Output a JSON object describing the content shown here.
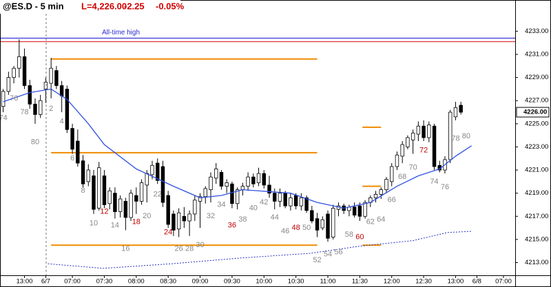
{
  "chart_data": {
    "type": "candlestick",
    "title": "@ES.D - 5 min",
    "quote": [
      {
        "text": "L=4,226.00",
        "color": "#d00000"
      },
      {
        "text": "-2.25",
        "color": "#d00000"
      },
      {
        "text": "-0.05%",
        "color": "#d00000"
      }
    ],
    "xlim": [
      -0.6,
      96.2
    ],
    "ylim": [
      4211.9,
      4235.7
    ],
    "xticks": [
      {
        "value": 4,
        "label": "13:00"
      },
      {
        "value": 8,
        "label": "6/7"
      },
      {
        "value": 13,
        "label": "07:00"
      },
      {
        "value": 19,
        "label": "07:30"
      },
      {
        "value": 25,
        "label": "08:00"
      },
      {
        "value": 31,
        "label": "08:30"
      },
      {
        "value": 37,
        "label": "09:00"
      },
      {
        "value": 43,
        "label": "09:30"
      },
      {
        "value": 49,
        "label": "10:00"
      },
      {
        "value": 55,
        "label": "10:30"
      },
      {
        "value": 61,
        "label": "11:00"
      },
      {
        "value": 67,
        "label": "11:30"
      },
      {
        "value": 73,
        "label": "12:00"
      },
      {
        "value": 79,
        "label": "12:30"
      },
      {
        "value": 85,
        "label": "13:00"
      },
      {
        "value": 89,
        "label": "6/8"
      },
      {
        "value": 94,
        "label": "07:00"
      }
    ],
    "yticks": [
      {
        "value": 4213,
        "label": "4213.00"
      },
      {
        "value": 4215,
        "label": "4215.00"
      },
      {
        "value": 4217,
        "label": "4217.00"
      },
      {
        "value": 4219,
        "label": "4219.00"
      },
      {
        "value": 4221,
        "label": "4221.00"
      },
      {
        "value": 4223,
        "label": "4223.00"
      },
      {
        "value": 4225,
        "label": "4225.00"
      },
      {
        "value": 4227,
        "label": "4227.00"
      },
      {
        "value": 4229,
        "label": "4229.00"
      },
      {
        "value": 4231,
        "label": "4231.00"
      },
      {
        "value": 4233,
        "label": "4233.00"
      }
    ],
    "last_price": {
      "value": 4226,
      "label": "4226.00"
    },
    "up_color": "#ffffff",
    "down_color": "#000000",
    "candles": {
      "open": [
        4226.5,
        4227.8,
        4229,
        4229.8,
        4230.8,
        4228.3,
        4226.7,
        4225.8,
        4228,
        4228.5,
        4229.6,
        4228.3,
        4228,
        4224.6,
        4223.5,
        4221.8,
        4220,
        4220.5,
        4217.7,
        4220.5,
        4218.1,
        4219,
        4217.4,
        4218.3,
        4216.9,
        4218.8,
        4218.3,
        4219.7,
        4220.6,
        4221.6,
        4221.3,
        4218.8,
        4217.2,
        4215.9,
        4217,
        4216.6,
        4217.2,
        4218.3,
        4218.7,
        4219.3,
        4220.3,
        4220.8,
        4219.6,
        4219.8,
        4218.1,
        4219.3,
        4219.6,
        4220.4,
        4219.9,
        4220.7,
        4219.7,
        4219,
        4218.3,
        4219,
        4217.9,
        4218.8,
        4217.9,
        4218.6,
        4217.5,
        4216.8,
        4216,
        4217.2,
        4215.2,
        4217.6,
        4217.9,
        4217.5,
        4217.8,
        4217.9,
        4217,
        4218.2,
        4218.6,
        4218.9,
        4219.3,
        4220,
        4221.3,
        4222.2,
        4223,
        4223.6,
        4224.1,
        4224.8,
        4223.8,
        4224.8,
        4221.4,
        4221,
        4221.9,
        4225.6,
        4226.6
      ],
      "high": [
        4228,
        4229.5,
        4230,
        4232.3,
        4231.5,
        4228.8,
        4227.2,
        4227.5,
        4229,
        4230.7,
        4230,
        4228.7,
        4228.3,
        4225,
        4224.5,
        4222.3,
        4221.5,
        4221,
        4221.7,
        4221,
        4219.5,
        4219.5,
        4218.8,
        4218.6,
        4219.3,
        4219.5,
        4220.2,
        4221,
        4221.8,
        4222,
        4221.8,
        4219.2,
        4217.5,
        4217.7,
        4217.8,
        4217.5,
        4218.8,
        4219,
        4219.6,
        4220.8,
        4221.6,
        4221,
        4220.2,
        4220,
        4219.5,
        4219.9,
        4220.8,
        4220.7,
        4221.2,
        4221,
        4220.5,
        4219.4,
        4219.4,
        4219.2,
        4219,
        4219,
        4219,
        4218.8,
        4217.9,
        4217.3,
        4217,
        4217.5,
        4218,
        4218.2,
        4218.1,
        4218,
        4218.2,
        4218.2,
        4218.4,
        4218.8,
        4219.2,
        4219.5,
        4220.4,
        4221.6,
        4222.6,
        4223.5,
        4224,
        4224.5,
        4225.2,
        4225.3,
        4225.2,
        4225,
        4221.8,
        4222.2,
        4226.2,
        4226.9,
        4226.9
      ],
      "low": [
        4226,
        4227.5,
        4228.5,
        4229,
        4228,
        4226.3,
        4225,
        4225.5,
        4226.8,
        4227.2,
        4228,
        4226,
        4224.2,
        4222.4,
        4221.3,
        4219.5,
        4219.6,
        4217.2,
        4217.5,
        4217.7,
        4217.6,
        4216.8,
        4216.9,
        4215.8,
        4216.6,
        4217.2,
        4218,
        4218.2,
        4220.2,
        4219.8,
        4217.8,
        4216,
        4215.3,
        4215.2,
        4216,
        4215.3,
        4216.6,
        4216,
        4218.1,
        4218.2,
        4219.8,
        4219.3,
        4219,
        4217.7,
        4217.6,
        4218.8,
        4219.2,
        4219.5,
        4219.6,
        4219.4,
        4218.6,
        4217.6,
        4217.8,
        4217.7,
        4217.5,
        4217.6,
        4217.5,
        4217.3,
        4216.4,
        4215.2,
        4215.8,
        4214.8,
        4215,
        4217,
        4217.2,
        4217,
        4216.9,
        4216.6,
        4216.8,
        4217.8,
        4218.2,
        4218.5,
        4219,
        4219.6,
        4221,
        4221.6,
        4222.8,
        4222.4,
        4223.5,
        4223.5,
        4223.4,
        4221,
        4220.8,
        4220.7,
        4221.6,
        4225.3,
        4225.8
      ],
      "close": [
        4227.8,
        4229,
        4229.8,
        4230.8,
        4228.3,
        4226.7,
        4225.8,
        4227,
        4228.6,
        4229.8,
        4228.3,
        4227.4,
        4224.5,
        4222.8,
        4221.6,
        4219.8,
        4221,
        4217.6,
        4221.2,
        4218,
        4219.2,
        4217.4,
        4218.5,
        4216.9,
        4219,
        4218.3,
        4219.9,
        4220.7,
        4221.4,
        4220.1,
        4218.2,
        4216.3,
        4215.8,
        4217.3,
        4216.6,
        4217.2,
        4218.4,
        4218.7,
        4219.4,
        4220.4,
        4221.1,
        4219.6,
        4219.9,
        4218.1,
        4219.3,
        4219.6,
        4220.4,
        4219.8,
        4220.7,
        4219.7,
        4219,
        4218.3,
        4219,
        4217.9,
        4218.6,
        4217.9,
        4218.6,
        4217.5,
        4216.6,
        4215.8,
        4216.7,
        4215.1,
        4217.7,
        4217.9,
        4217.5,
        4217.8,
        4217.1,
        4217,
        4218.2,
        4218.6,
        4218.9,
        4219.3,
        4220.2,
        4221.3,
        4222.3,
        4223.2,
        4223.8,
        4224.2,
        4224.8,
        4223.8,
        4224.9,
        4221.3,
        4221,
        4221.9,
        4226,
        4226.4,
        4226
      ]
    },
    "ema": {
      "color": "#3050e0",
      "x": [
        0,
        5,
        9,
        12,
        16,
        19,
        25,
        32,
        37,
        41,
        45,
        54,
        59,
        64,
        69,
        74,
        78,
        82,
        85,
        88
      ],
      "values": [
        4226.9,
        4227.7,
        4228,
        4227.1,
        4225,
        4223.2,
        4221.1,
        4219.6,
        4218.6,
        4218.8,
        4219.3,
        4219,
        4218.2,
        4217.7,
        4218.2,
        4219.6,
        4220.5,
        4221.1,
        4222.2,
        4223.1
      ]
    },
    "dotted": {
      "color": "#2030c0",
      "x": [
        8.4,
        18.8,
        31.7,
        44.7,
        57.6,
        66.7,
        77,
        83.5,
        88
      ],
      "values": [
        4212.9,
        4212.5,
        4212.9,
        4213.4,
        4213.8,
        4214.4,
        4214.9,
        4215.6,
        4215.7
      ]
    },
    "hlines": [
      {
        "value": 4232.4,
        "color": "#2a2ad0",
        "label": "All-time high"
      },
      {
        "value": 4232.1,
        "color": "#e03040"
      },
      {
        "value": 4230.6,
        "color": "#f08a00",
        "from": 9,
        "to": 59
      },
      {
        "value": 4222.5,
        "color": "#f08a00",
        "from": 9,
        "to": 59
      },
      {
        "value": 4214.5,
        "color": "#f08a00",
        "from": 9,
        "to": 59
      },
      {
        "value": 4224.7,
        "color": "#f08a00",
        "from": 67.5,
        "to": 71
      },
      {
        "value": 4219.6,
        "color": "#f08a00",
        "from": 67.5,
        "to": 71
      },
      {
        "value": 4214.5,
        "color": "#f08a00",
        "from": 67.5,
        "to": 71
      }
    ],
    "annotations": [
      {
        "text": "74",
        "x": 0,
        "y": 4225.5,
        "color": "#888888"
      },
      {
        "text": "76",
        "x": 2,
        "y": 4227.2,
        "color": "#888888"
      },
      {
        "text": "78",
        "x": 4,
        "y": 4226,
        "color": "#888888"
      },
      {
        "text": "80",
        "x": 6,
        "y": 4223.4,
        "color": "#888888"
      },
      {
        "text": "2",
        "x": 9,
        "y": 4226.3,
        "color": "#888888"
      },
      {
        "text": "4",
        "x": 11,
        "y": 4225.2,
        "color": "#888888"
      },
      {
        "text": "6",
        "x": 13,
        "y": 4222,
        "color": "#888888"
      },
      {
        "text": "8",
        "x": 15,
        "y": 4219.2,
        "color": "#888888"
      },
      {
        "text": "10",
        "x": 17,
        "y": 4216.4,
        "color": "#888888"
      },
      {
        "text": "12",
        "x": 19,
        "y": 4217.4,
        "color": "#c00000"
      },
      {
        "text": "14",
        "x": 21,
        "y": 4216.2,
        "color": "#888888"
      },
      {
        "text": "16",
        "x": 23,
        "y": 4214.2,
        "color": "#888888"
      },
      {
        "text": "18",
        "x": 25,
        "y": 4216.5,
        "color": "#c00000"
      },
      {
        "text": "20",
        "x": 27,
        "y": 4217,
        "color": "#888888"
      },
      {
        "text": "22",
        "x": 29,
        "y": 4218.9,
        "color": "#888888"
      },
      {
        "text": "24",
        "x": 31,
        "y": 4215.6,
        "color": "#c00000"
      },
      {
        "text": "26",
        "x": 33,
        "y": 4214.2,
        "color": "#888888"
      },
      {
        "text": "28",
        "x": 35,
        "y": 4214.2,
        "color": "#888888"
      },
      {
        "text": "30",
        "x": 37,
        "y": 4214.5,
        "color": "#888888"
      },
      {
        "text": "32",
        "x": 39,
        "y": 4217,
        "color": "#888888"
      },
      {
        "text": "34",
        "x": 41,
        "y": 4218,
        "color": "#888888"
      },
      {
        "text": "36",
        "x": 43,
        "y": 4216.2,
        "color": "#c00000"
      },
      {
        "text": "38",
        "x": 45,
        "y": 4216.7,
        "color": "#888888"
      },
      {
        "text": "40",
        "x": 47,
        "y": 4217.7,
        "color": "#888888"
      },
      {
        "text": "42",
        "x": 49,
        "y": 4218.2,
        "color": "#888888"
      },
      {
        "text": "44",
        "x": 51,
        "y": 4216.9,
        "color": "#888888"
      },
      {
        "text": "46",
        "x": 53,
        "y": 4215.7,
        "color": "#888888"
      },
      {
        "text": "48",
        "x": 55,
        "y": 4216,
        "color": "#c00000"
      },
      {
        "text": "50",
        "x": 57,
        "y": 4216,
        "color": "#888888"
      },
      {
        "text": "52",
        "x": 59,
        "y": 4213.2,
        "color": "#888888"
      },
      {
        "text": "54",
        "x": 61,
        "y": 4213.7,
        "color": "#888888"
      },
      {
        "text": "56",
        "x": 63,
        "y": 4213.9,
        "color": "#888888"
      },
      {
        "text": "58",
        "x": 65,
        "y": 4215.4,
        "color": "#888888"
      },
      {
        "text": "60",
        "x": 67,
        "y": 4215.2,
        "color": "#c00000"
      },
      {
        "text": "62",
        "x": 69,
        "y": 4216.5,
        "color": "#888888"
      },
      {
        "text": "64",
        "x": 71,
        "y": 4216.7,
        "color": "#888888"
      },
      {
        "text": "66",
        "x": 73,
        "y": 4218.4,
        "color": "#888888"
      },
      {
        "text": "68",
        "x": 75,
        "y": 4220.4,
        "color": "#888888"
      },
      {
        "text": "70",
        "x": 77,
        "y": 4221.2,
        "color": "#888888"
      },
      {
        "text": "72",
        "x": 79,
        "y": 4222.7,
        "color": "#c00000"
      },
      {
        "text": "74",
        "x": 81,
        "y": 4220,
        "color": "#888888"
      },
      {
        "text": "76",
        "x": 83,
        "y": 4219.5,
        "color": "#888888"
      },
      {
        "text": "78",
        "x": 85,
        "y": 4223.7,
        "color": "#888888"
      },
      {
        "text": "80",
        "x": 87,
        "y": 4223.9,
        "color": "#888888"
      }
    ]
  }
}
